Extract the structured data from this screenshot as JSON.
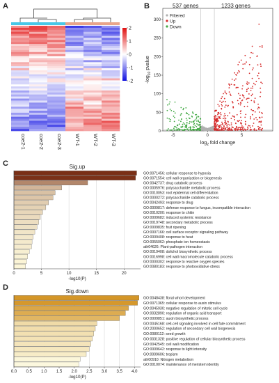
{
  "panels": {
    "a": {
      "label": "A"
    },
    "b": {
      "label": "B"
    },
    "c": {
      "label": "C"
    },
    "d": {
      "label": "D"
    }
  },
  "chart_data": [
    {
      "panel": "A",
      "type": "heatmap",
      "title": "",
      "samples": [
        "coe2-1",
        "coe2-2",
        "coe2-3",
        "WT-1",
        "WT-2",
        "WT-3"
      ],
      "group_colors": {
        "coe2": "#48c8e8",
        "WT": "#e9a58a"
      },
      "colorbar": {
        "ticks": [
          2,
          1,
          0,
          -1,
          -2
        ],
        "low": "#1010e0",
        "mid": "#ffffff",
        "high": "#e01010"
      },
      "z_range": [
        -2,
        2
      ]
    },
    {
      "panel": "B",
      "type": "scatter",
      "xlabel": "log2 fold change",
      "ylabel": "-log10 pvalue",
      "xticks": [
        -5,
        0,
        5
      ],
      "yticks": [
        0,
        50,
        100,
        150,
        200,
        250,
        300
      ],
      "xlim": [
        -6.5,
        9.5
      ],
      "ylim": [
        0,
        330
      ],
      "annotations": {
        "down_count": "537 genes",
        "up_count": "1233 genes"
      },
      "legend": [
        {
          "name": "Filtered",
          "color": "#b0b0b0"
        },
        {
          "name": "Up",
          "color": "#d62a2a"
        },
        {
          "name": "Down",
          "color": "#41a843"
        }
      ],
      "thresholds": {
        "log2fc": [
          -1,
          1
        ],
        "pvalue_line": 3
      }
    },
    {
      "panel": "C",
      "type": "bar",
      "orientation": "horizontal",
      "title": "Sig.up",
      "xlabel": "-log10(P)",
      "xticks": [
        0,
        5,
        10,
        15,
        20
      ],
      "xlim": [
        0,
        23
      ],
      "categories": [
        "GO:0071456: cellular response to hypoxia",
        "GO:0071554: cell wall organization or biogenesis",
        "GO:0042737: drug catabolic process",
        "GO:0005976: polysaccharide metabolic process",
        "GO:0010053: root epidermal cell differentiation",
        "GO:0000272: polysaccharide catabolic process",
        "GO:0042493: response to drug",
        "GO:0009817: defense response to fungus, incompatible interaction",
        "GO:0010200: response to chitin",
        "GO:0009682: induced systemic resistance",
        "GO:0019748: secondary metabolic process",
        "GO:0009835: fruit ripening",
        "GO:0007166: cell surface receptor signaling pathway",
        "GO:0009408: response to heat",
        "GO:0055062: phosphate ion homeostasis",
        "ath04626: Plant-pathogen interaction",
        "GO:0019408: dolichol biosynthetic process",
        "GO:0016998: cell wall macromolecule catabolic process",
        "GO:0000302: response to reactive oxygen species",
        "GO:0080183: response to photooxidative stress"
      ],
      "values": [
        22.3,
        22.1,
        13.4,
        8.7,
        7.5,
        7.1,
        6.3,
        5.8,
        5.2,
        4.8,
        4.5,
        4.2,
        3.8,
        3.5,
        3.3,
        3.2,
        2.8,
        2.5,
        2.3,
        2.1
      ]
    },
    {
      "panel": "D",
      "type": "bar",
      "orientation": "horizontal",
      "title": "Sig.down",
      "xlabel": "-log10(P)",
      "xticks": [
        0.0,
        0.5,
        1.0,
        1.5,
        2.0,
        2.5,
        3.0,
        3.5,
        4.0
      ],
      "xlim": [
        0,
        4.2
      ],
      "categories": [
        "GO:0048438: floral whorl development",
        "GO:0071365: cellular response to auxin stimulus",
        "GO:0045930: negative regulation of mitotic cell cycle",
        "GO:0032890: regulation of organic acid transport",
        "GO:0009851: auxin biosynthetic process",
        "GO:0045168: cell-cell signaling involved in cell fate commitment",
        "GO:2000652: regulation of secondary cell wall biogenesis",
        "GO:0080112: seed growth",
        "GO:0031328: positive regulation of cellular biosynthetic process",
        "GO:0042545: cell wall modification",
        "GO:0009642: response to light intensity",
        "GO:0009606: tropism",
        "ath00910: Nitrogen metabolism",
        "GO:0010074: maintenance of meristem identity"
      ],
      "values": [
        4.15,
        4.1,
        3.8,
        3.7,
        3.5,
        2.75,
        2.7,
        2.65,
        2.6,
        2.55,
        2.5,
        2.4,
        2.2,
        2.15
      ]
    }
  ]
}
